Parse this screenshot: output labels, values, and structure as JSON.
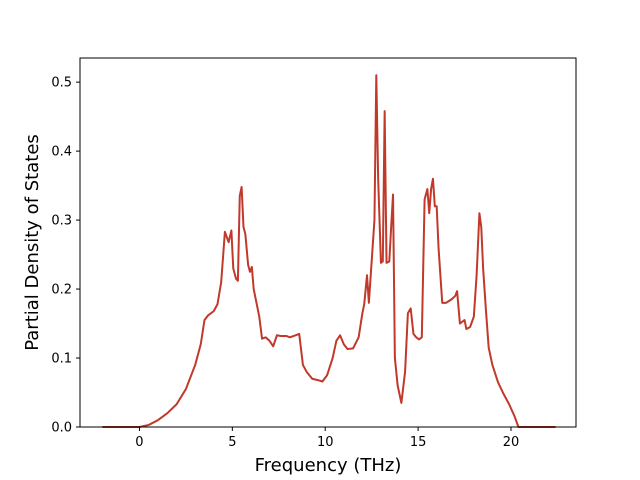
{
  "chart_data": {
    "type": "line",
    "title": "",
    "xlabel": "Frequency (THz)",
    "ylabel": "Partial Density of States",
    "xlim": [
      -3.2,
      23.5
    ],
    "ylim": [
      0,
      0.535
    ],
    "x_ticks": [
      0,
      5,
      10,
      15,
      20
    ],
    "x_tick_labels": [
      "0",
      "5",
      "10",
      "15",
      "20"
    ],
    "y_ticks": [
      0.0,
      0.1,
      0.2,
      0.3,
      0.4,
      0.5
    ],
    "y_tick_labels": [
      "0.0",
      "0.1",
      "0.2",
      "0.3",
      "0.4",
      "0.5"
    ],
    "grid": false,
    "legend": "none",
    "series": [
      {
        "color": "#c0392b",
        "points": [
          [
            -2.0,
            0.0
          ],
          [
            0.0,
            0.0
          ],
          [
            0.5,
            0.003
          ],
          [
            1.0,
            0.01
          ],
          [
            1.5,
            0.02
          ],
          [
            2.0,
            0.033
          ],
          [
            2.5,
            0.055
          ],
          [
            3.0,
            0.09
          ],
          [
            3.3,
            0.12
          ],
          [
            3.5,
            0.155
          ],
          [
            3.7,
            0.162
          ],
          [
            4.0,
            0.168
          ],
          [
            4.2,
            0.178
          ],
          [
            4.4,
            0.21
          ],
          [
            4.6,
            0.283
          ],
          [
            4.8,
            0.268
          ],
          [
            4.95,
            0.285
          ],
          [
            5.05,
            0.23
          ],
          [
            5.2,
            0.215
          ],
          [
            5.3,
            0.212
          ],
          [
            5.4,
            0.335
          ],
          [
            5.5,
            0.348
          ],
          [
            5.6,
            0.29
          ],
          [
            5.7,
            0.28
          ],
          [
            5.85,
            0.235
          ],
          [
            5.95,
            0.225
          ],
          [
            6.05,
            0.232
          ],
          [
            6.15,
            0.2
          ],
          [
            6.3,
            0.18
          ],
          [
            6.45,
            0.16
          ],
          [
            6.6,
            0.128
          ],
          [
            6.8,
            0.13
          ],
          [
            7.0,
            0.125
          ],
          [
            7.2,
            0.117
          ],
          [
            7.4,
            0.133
          ],
          [
            7.6,
            0.132
          ],
          [
            7.9,
            0.132
          ],
          [
            8.1,
            0.13
          ],
          [
            8.4,
            0.133
          ],
          [
            8.6,
            0.135
          ],
          [
            8.8,
            0.09
          ],
          [
            9.0,
            0.08
          ],
          [
            9.3,
            0.07
          ],
          [
            9.6,
            0.068
          ],
          [
            9.85,
            0.066
          ],
          [
            10.1,
            0.075
          ],
          [
            10.4,
            0.1
          ],
          [
            10.6,
            0.125
          ],
          [
            10.8,
            0.133
          ],
          [
            11.0,
            0.12
          ],
          [
            11.2,
            0.113
          ],
          [
            11.5,
            0.114
          ],
          [
            11.8,
            0.13
          ],
          [
            12.0,
            0.165
          ],
          [
            12.1,
            0.178
          ],
          [
            12.25,
            0.22
          ],
          [
            12.35,
            0.18
          ],
          [
            12.5,
            0.24
          ],
          [
            12.65,
            0.3
          ],
          [
            12.75,
            0.51
          ],
          [
            12.85,
            0.36
          ],
          [
            13.0,
            0.238
          ],
          [
            13.1,
            0.24
          ],
          [
            13.2,
            0.458
          ],
          [
            13.3,
            0.238
          ],
          [
            13.45,
            0.24
          ],
          [
            13.55,
            0.29
          ],
          [
            13.65,
            0.337
          ],
          [
            13.75,
            0.1
          ],
          [
            13.9,
            0.06
          ],
          [
            14.1,
            0.035
          ],
          [
            14.3,
            0.08
          ],
          [
            14.45,
            0.165
          ],
          [
            14.6,
            0.172
          ],
          [
            14.75,
            0.135
          ],
          [
            14.9,
            0.13
          ],
          [
            15.05,
            0.127
          ],
          [
            15.2,
            0.13
          ],
          [
            15.35,
            0.33
          ],
          [
            15.5,
            0.345
          ],
          [
            15.6,
            0.31
          ],
          [
            15.7,
            0.345
          ],
          [
            15.8,
            0.36
          ],
          [
            15.9,
            0.32
          ],
          [
            16.0,
            0.32
          ],
          [
            16.1,
            0.26
          ],
          [
            16.3,
            0.18
          ],
          [
            16.5,
            0.18
          ],
          [
            16.8,
            0.185
          ],
          [
            17.0,
            0.19
          ],
          [
            17.1,
            0.197
          ],
          [
            17.25,
            0.15
          ],
          [
            17.4,
            0.153
          ],
          [
            17.5,
            0.155
          ],
          [
            17.6,
            0.142
          ],
          [
            17.8,
            0.145
          ],
          [
            18.0,
            0.16
          ],
          [
            18.15,
            0.22
          ],
          [
            18.3,
            0.31
          ],
          [
            18.4,
            0.29
          ],
          [
            18.5,
            0.23
          ],
          [
            18.65,
            0.17
          ],
          [
            18.8,
            0.115
          ],
          [
            19.0,
            0.09
          ],
          [
            19.3,
            0.065
          ],
          [
            19.6,
            0.048
          ],
          [
            19.9,
            0.033
          ],
          [
            20.2,
            0.015
          ],
          [
            20.4,
            0.0
          ],
          [
            20.6,
            0.0
          ],
          [
            22.4,
            0.0
          ]
        ]
      }
    ]
  }
}
